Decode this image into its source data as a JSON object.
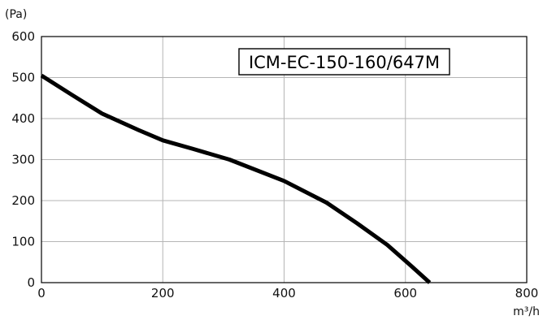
{
  "chart_data": {
    "type": "line",
    "title": "ICM-EC-150-160/647M",
    "ylabel": "(Pa)",
    "xlabel": "m³/h",
    "xlim": [
      0,
      800
    ],
    "ylim": [
      0,
      600
    ],
    "x_ticks": [
      "0",
      "200",
      "400",
      "600",
      "800"
    ],
    "y_ticks": [
      "0",
      "100",
      "200",
      "300",
      "400",
      "500",
      "600"
    ],
    "grid": true,
    "series": [
      {
        "x": [
          0,
          50,
          100,
          160,
          200,
          250,
          310,
          400,
          470,
          520,
          570,
          610,
          640
        ],
        "y": [
          505,
          458,
          412,
          372,
          347,
          326,
          300,
          248,
          195,
          145,
          92,
          40,
          0
        ],
        "color": "#000000"
      }
    ]
  }
}
